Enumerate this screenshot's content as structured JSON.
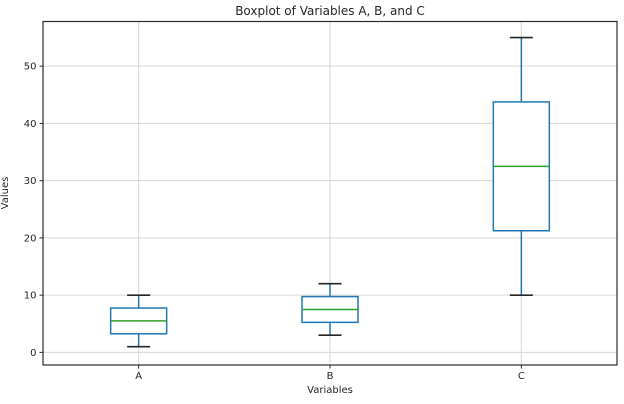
{
  "chart_data": {
    "type": "boxplot",
    "title": "Boxplot of Variables A, B, and C",
    "xlabel": "Variables",
    "ylabel": "Values",
    "categories": [
      "A",
      "B",
      "C"
    ],
    "yticks": [
      0,
      10,
      20,
      30,
      40,
      50
    ],
    "ylim": [
      -2.2,
      57.8
    ],
    "grid": true,
    "legend": false,
    "series": [
      {
        "name": "A",
        "min": 1,
        "q1": 3.25,
        "median": 5.5,
        "q3": 7.75,
        "max": 10
      },
      {
        "name": "B",
        "min": 3,
        "q1": 5.25,
        "median": 7.5,
        "q3": 9.75,
        "max": 12
      },
      {
        "name": "C",
        "min": 10,
        "q1": 21.25,
        "median": 32.5,
        "q3": 43.75,
        "max": 55
      }
    ],
    "colors": {
      "box": "#1f77b4",
      "whisker": "#1f77b4",
      "median": "#2ca02c",
      "cap": "#262626",
      "grid": "#d6d6d6",
      "spine": "#2b2b2b",
      "text": "#262626",
      "background": "#ffffff"
    }
  }
}
